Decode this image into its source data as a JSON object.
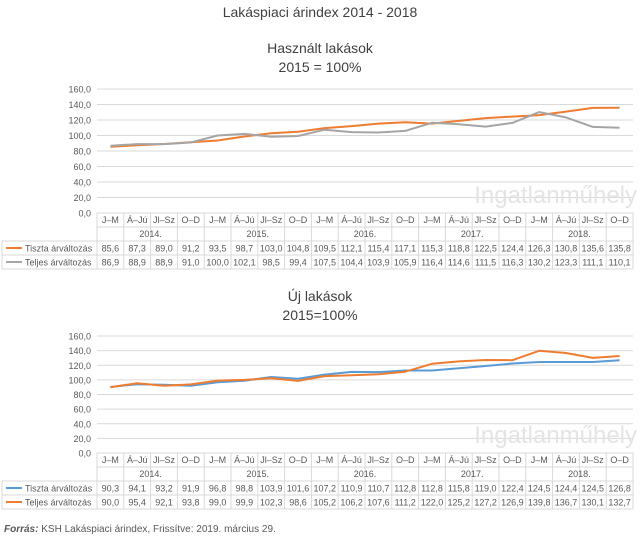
{
  "page_title": "Lakáspiaci árindex 2014 - 2018",
  "watermark": "Ingatlanműhely",
  "source": {
    "label": "Forrás:",
    "text": " KSH Lakáspiaci árindex, Frissítve: 2019. március 29."
  },
  "colors": {
    "orange": "#ed7d31",
    "gray": "#a5a5a5",
    "blue": "#5b9bd5"
  },
  "chart_data": [
    {
      "type": "line",
      "title": "Használt lakások",
      "subtitle": "2015 = 100%",
      "y_ticks": [
        "0,0",
        "20,0",
        "40,0",
        "60,0",
        "80,0",
        "100,0",
        "120,0",
        "140,0",
        "160,0"
      ],
      "ylim": [
        0,
        160
      ],
      "grid": true,
      "categories": [
        "J–M",
        "Á–Jú",
        "Jl–Sz",
        "O–D",
        "J–M",
        "Á–Jú",
        "Jl–Sz",
        "O–D",
        "J–M",
        "Á–Jú",
        "Jl–Sz",
        "O–D",
        "J–M",
        "Á–Jú",
        "Jl–Sz",
        "O–D",
        "J–M",
        "Á–Jú",
        "Jl–Sz",
        "O–D"
      ],
      "years": [
        "2014.",
        "2015.",
        "2016.",
        "2017.",
        "2018."
      ],
      "series": [
        {
          "name": "Tiszta árváltozás",
          "color": "#ed7d31",
          "values": [
            85.6,
            87.3,
            89.0,
            91.2,
            93.5,
            98.7,
            103.0,
            104.8,
            109.5,
            112.1,
            115.4,
            117.1,
            115.3,
            118.8,
            122.5,
            124.4,
            126.3,
            130.8,
            135.6,
            135.8
          ],
          "labels": [
            "85,6",
            "87,3",
            "89,0",
            "91,2",
            "93,5",
            "98,7",
            "103,0",
            "104,8",
            "109,5",
            "112,1",
            "115,4",
            "117,1",
            "115,3",
            "118,8",
            "122,5",
            "124,4",
            "126,3",
            "130,8",
            "135,6",
            "135,8"
          ]
        },
        {
          "name": "Teljes árváltozás",
          "color": "#a5a5a5",
          "values": [
            86.9,
            88.9,
            88.9,
            91.0,
            100.0,
            102.1,
            98.5,
            99.4,
            107.5,
            104.4,
            103.9,
            105.9,
            116.4,
            114.6,
            111.5,
            116.3,
            130.2,
            123.3,
            111.1,
            110.1
          ],
          "labels": [
            "86,9",
            "88,9",
            "88,9",
            "91,0",
            "100,0",
            "102,1",
            "98,5",
            "99,4",
            "107,5",
            "104,4",
            "103,9",
            "105,9",
            "116,4",
            "114,6",
            "111,5",
            "116,3",
            "130,2",
            "123,3",
            "111,1",
            "110,1"
          ]
        }
      ]
    },
    {
      "type": "line",
      "title": "Új lakások",
      "subtitle": "2015=100%",
      "y_ticks": [
        "0,0",
        "20,0",
        "40,0",
        "60,0",
        "80,0",
        "100,0",
        "120,0",
        "140,0",
        "160,0"
      ],
      "ylim": [
        0,
        160
      ],
      "grid": true,
      "categories": [
        "J–M",
        "Á–Jú",
        "Jl–Sz",
        "O–D",
        "J–M",
        "Á–Jú",
        "Jl–Sz",
        "O–D",
        "J–M",
        "Á–Jú",
        "Jl–Sz",
        "O–D",
        "J–M",
        "Á–Jú",
        "Jl–Sz",
        "O–D",
        "J–M",
        "Á–Jú",
        "Jl–Sz",
        "O–D"
      ],
      "years": [
        "2014.",
        "2015.",
        "2016.",
        "2017.",
        "2018."
      ],
      "series": [
        {
          "name": "Tiszta árváltozás",
          "color": "#5b9bd5",
          "values": [
            90.3,
            94.1,
            93.2,
            91.9,
            96.8,
            98.8,
            103.9,
            101.6,
            107.2,
            110.9,
            110.7,
            112.8,
            112.8,
            115.8,
            119.0,
            122.4,
            124.5,
            124.4,
            124.5,
            126.8
          ],
          "labels": [
            "90,3",
            "94,1",
            "93,2",
            "91,9",
            "96,8",
            "98,8",
            "103,9",
            "101,6",
            "107,2",
            "110,9",
            "110,7",
            "112,8",
            "112,8",
            "115,8",
            "119,0",
            "122,4",
            "124,5",
            "124,4",
            "124,5",
            "126,8"
          ]
        },
        {
          "name": "Teljes árváltozás",
          "color": "#ed7d31",
          "values": [
            90.0,
            95.4,
            92.1,
            93.8,
            99.0,
            99.9,
            102.3,
            98.6,
            105.2,
            106.2,
            107.6,
            111.2,
            122.0,
            125.2,
            127.2,
            126.9,
            139.8,
            136.7,
            130.1,
            132.7
          ],
          "labels": [
            "90,0",
            "95,4",
            "92,1",
            "93,8",
            "99,0",
            "99,9",
            "102,3",
            "98,6",
            "105,2",
            "106,2",
            "107,6",
            "111,2",
            "122,0",
            "125,2",
            "127,2",
            "126,9",
            "139,8",
            "136,7",
            "130,1",
            "132,7"
          ]
        }
      ]
    }
  ]
}
